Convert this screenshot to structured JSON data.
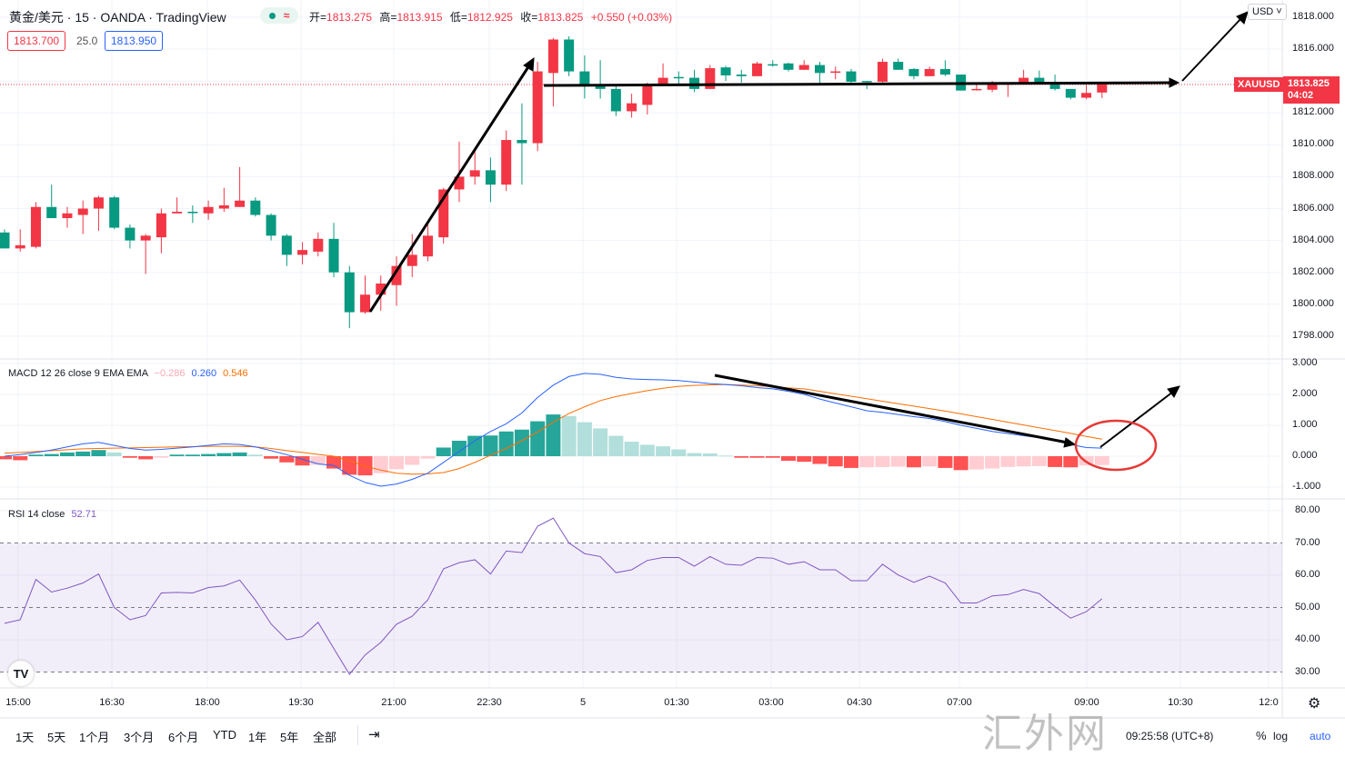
{
  "header": {
    "title": "黄金/美元 · 15 · OANDA · TradingView",
    "status_approx": "≈",
    "ohlc": [
      {
        "k": "开=",
        "v": "1813.275"
      },
      {
        "k": "高=",
        "v": "1813.915"
      },
      {
        "k": "低=",
        "v": "1812.925"
      },
      {
        "k": "收=",
        "v": "1813.825"
      }
    ],
    "change": "+0.550 (+0.03%)",
    "sell_price": "1813.700",
    "spread": "25.0",
    "buy_price": "1813.950"
  },
  "price_axis": {
    "currency": "USD ˅",
    "labels": [
      "1818.000",
      "1816.000",
      "1812.000",
      "1810.000",
      "1808.000",
      "1806.000",
      "1804.000",
      "1802.000",
      "1800.000",
      "1798.000"
    ],
    "symbol": "XAUUSD",
    "last_price": "1813.825",
    "countdown": "04:02"
  },
  "macd": {
    "legend": "MACD 12 26 close 9 EMA EMA",
    "hist_value": "−0.286",
    "macd_value": "0.260",
    "signal_value": "0.546",
    "axis": [
      "3.000",
      "2.000",
      "1.000",
      "0.000",
      "-1.000"
    ]
  },
  "rsi": {
    "legend": "RSI 14 close",
    "value": "52.71",
    "axis": [
      "80.00",
      "70.00",
      "60.00",
      "50.00",
      "40.00",
      "30.00"
    ]
  },
  "time_axis": [
    "15:00",
    "16:30",
    "18:00",
    "19:30",
    "21:00",
    "22:30",
    "5",
    "01:30",
    "03:00",
    "04:30",
    "07:00",
    "09:00",
    "10:30",
    "12:0"
  ],
  "toolbar": {
    "ranges": [
      "1天",
      "5天",
      "1个月",
      "3个月",
      "6个月",
      "YTD",
      "1年",
      "5年",
      "全部"
    ],
    "clock": "09:25:58 (UTC+8)",
    "pct": "%",
    "log": "log",
    "auto": "auto"
  },
  "logo": "TV",
  "watermark": "汇外网",
  "colors": {
    "up": "#f23645",
    "down": "#089981",
    "macd": "#2962ff",
    "signal": "#ff6d00",
    "rsi": "#7e57c2",
    "hist_up_grow": "#26a69a",
    "hist_up_fall": "#b2dfdb",
    "hist_dn_grow": "#ff5252",
    "hist_dn_fall": "#ffcdd2"
  },
  "chart_data": {
    "type": "candlestick",
    "symbol": "XAUUSD",
    "interval": "15",
    "ylim": [
      1797,
      1818
    ],
    "candles_ohlc": [
      [
        1804.5,
        1804.7,
        1803.5,
        1803.5
      ],
      [
        1803.5,
        1804.7,
        1803.3,
        1803.7
      ],
      [
        1803.6,
        1806.4,
        1803.5,
        1806.1
      ],
      [
        1806.1,
        1807.5,
        1805.4,
        1805.4
      ],
      [
        1805.4,
        1806.1,
        1804.8,
        1805.7
      ],
      [
        1805.6,
        1806.5,
        1804.4,
        1806.0
      ],
      [
        1806.0,
        1806.8,
        1804.6,
        1806.7
      ],
      [
        1806.7,
        1806.8,
        1804.7,
        1804.8
      ],
      [
        1804.8,
        1805.0,
        1803.5,
        1804.0
      ],
      [
        1804.0,
        1804.4,
        1801.9,
        1804.3
      ],
      [
        1804.2,
        1806.0,
        1803.2,
        1805.7
      ],
      [
        1805.7,
        1806.7,
        1805.7,
        1805.8
      ],
      [
        1805.8,
        1806.2,
        1805.1,
        1805.75
      ],
      [
        1805.7,
        1806.5,
        1805.3,
        1806.1
      ],
      [
        1806.0,
        1807.3,
        1805.8,
        1806.2
      ],
      [
        1806.1,
        1808.6,
        1806.1,
        1806.5
      ],
      [
        1806.5,
        1806.7,
        1805.5,
        1805.6
      ],
      [
        1805.6,
        1805.7,
        1804.0,
        1804.3
      ],
      [
        1804.3,
        1804.4,
        1802.4,
        1803.1
      ],
      [
        1803.1,
        1803.9,
        1802.5,
        1803.4
      ],
      [
        1803.3,
        1804.5,
        1803.0,
        1804.1
      ],
      [
        1804.1,
        1805.1,
        1801.7,
        1802.0
      ],
      [
        1802.0,
        1802.4,
        1798.5,
        1799.5
      ],
      [
        1799.5,
        1801.8,
        1799.4,
        1800.6
      ],
      [
        1800.6,
        1801.8,
        1799.6,
        1801.3
      ],
      [
        1801.2,
        1803.0,
        1799.9,
        1802.4
      ],
      [
        1802.4,
        1804.4,
        1801.7,
        1803.1
      ],
      [
        1803.0,
        1805.2,
        1802.7,
        1804.3
      ],
      [
        1804.2,
        1807.3,
        1803.8,
        1807.2
      ],
      [
        1807.2,
        1810.2,
        1806.4,
        1808.0
      ],
      [
        1808.0,
        1809.8,
        1807.5,
        1808.4
      ],
      [
        1808.4,
        1809.2,
        1806.4,
        1807.5
      ],
      [
        1807.5,
        1810.9,
        1807.1,
        1810.3
      ],
      [
        1810.3,
        1812.6,
        1807.5,
        1810.1
      ],
      [
        1810.1,
        1815.2,
        1809.6,
        1814.6
      ],
      [
        1814.5,
        1816.7,
        1812.4,
        1816.6
      ],
      [
        1816.6,
        1816.8,
        1814.3,
        1814.6
      ],
      [
        1814.6,
        1815.6,
        1812.9,
        1813.8
      ],
      [
        1813.8,
        1815.3,
        1812.9,
        1813.5
      ],
      [
        1813.5,
        1813.8,
        1811.8,
        1812.1
      ],
      [
        1812.1,
        1813.2,
        1811.7,
        1812.6
      ],
      [
        1812.5,
        1813.9,
        1811.9,
        1813.8
      ],
      [
        1813.8,
        1815.1,
        1813.8,
        1814.2
      ],
      [
        1814.25,
        1814.6,
        1813.8,
        1814.2
      ],
      [
        1814.2,
        1814.7,
        1813.3,
        1813.5
      ],
      [
        1813.5,
        1815.0,
        1813.5,
        1814.8
      ],
      [
        1814.85,
        1814.95,
        1814.0,
        1814.35
      ],
      [
        1814.4,
        1814.7,
        1813.9,
        1814.3
      ],
      [
        1814.3,
        1815.2,
        1814.3,
        1815.1
      ],
      [
        1815.05,
        1815.3,
        1814.9,
        1815.0
      ],
      [
        1815.1,
        1815.15,
        1814.6,
        1814.7
      ],
      [
        1814.7,
        1815.3,
        1814.7,
        1815.0
      ],
      [
        1815.0,
        1815.2,
        1813.8,
        1814.5
      ],
      [
        1814.55,
        1814.9,
        1814.1,
        1814.6
      ],
      [
        1814.6,
        1814.75,
        1813.85,
        1813.95
      ],
      [
        1814.0,
        1814.0,
        1813.5,
        1813.95
      ],
      [
        1813.95,
        1815.4,
        1813.9,
        1815.2
      ],
      [
        1815.2,
        1815.4,
        1814.7,
        1814.7
      ],
      [
        1814.75,
        1814.8,
        1814.1,
        1814.3
      ],
      [
        1814.3,
        1814.9,
        1814.3,
        1814.75
      ],
      [
        1814.75,
        1815.3,
        1814.3,
        1814.4
      ],
      [
        1814.4,
        1814.4,
        1813.4,
        1813.4
      ],
      [
        1813.45,
        1813.85,
        1813.4,
        1813.5
      ],
      [
        1813.45,
        1814.0,
        1813.3,
        1813.9
      ],
      [
        1813.8,
        1813.85,
        1813.0,
        1813.85
      ],
      [
        1813.85,
        1814.7,
        1813.8,
        1814.2
      ],
      [
        1814.2,
        1814.65,
        1813.8,
        1813.85
      ],
      [
        1813.9,
        1814.4,
        1813.4,
        1813.5
      ],
      [
        1813.5,
        1813.5,
        1812.85,
        1812.95
      ],
      [
        1812.95,
        1813.8,
        1812.85,
        1813.25
      ],
      [
        1813.275,
        1813.915,
        1812.925,
        1813.825
      ]
    ],
    "macd": [
      0.0,
      0.05,
      0.12,
      0.2,
      0.3,
      0.4,
      0.45,
      0.35,
      0.25,
      0.2,
      0.22,
      0.26,
      0.3,
      0.35,
      0.4,
      0.38,
      0.3,
      0.18,
      0.05,
      -0.1,
      -0.25,
      -0.3,
      -0.62,
      -0.85,
      -0.97,
      -0.9,
      -0.75,
      -0.55,
      -0.2,
      0.15,
      0.5,
      0.8,
      1.05,
      1.4,
      1.9,
      2.3,
      2.58,
      2.68,
      2.65,
      2.55,
      2.5,
      2.48,
      2.47,
      2.45,
      2.4,
      2.35,
      2.32,
      2.28,
      2.22,
      2.18,
      2.1,
      2.0,
      1.85,
      1.72,
      1.6,
      1.47,
      1.42,
      1.35,
      1.28,
      1.22,
      1.12,
      1.0,
      0.9,
      0.8,
      0.73,
      0.66,
      0.6,
      0.5,
      0.38,
      0.28,
      0.26
    ],
    "signal": [
      0.1,
      0.12,
      0.15,
      0.18,
      0.21,
      0.24,
      0.25,
      0.26,
      0.27,
      0.28,
      0.29,
      0.3,
      0.31,
      0.32,
      0.32,
      0.32,
      0.3,
      0.25,
      0.18,
      0.12,
      0.06,
      0.0,
      -0.15,
      -0.32,
      -0.45,
      -0.55,
      -0.58,
      -0.57,
      -0.53,
      -0.4,
      -0.2,
      0.03,
      0.25,
      0.5,
      0.78,
      1.1,
      1.38,
      1.6,
      1.8,
      1.93,
      2.03,
      2.12,
      2.2,
      2.26,
      2.29,
      2.31,
      2.32,
      2.3,
      2.28,
      2.25,
      2.21,
      2.18,
      2.1,
      2.02,
      1.94,
      1.86,
      1.78,
      1.7,
      1.62,
      1.54,
      1.46,
      1.37,
      1.28,
      1.19,
      1.1,
      1.01,
      0.92,
      0.83,
      0.74,
      0.64,
      0.55
    ],
    "histogram": [
      -0.1,
      -0.13,
      0.05,
      0.07,
      0.12,
      0.15,
      0.2,
      0.12,
      -0.05,
      -0.1,
      -0.05,
      0.05,
      0.05,
      0.07,
      0.1,
      0.12,
      0.05,
      -0.08,
      -0.2,
      -0.3,
      -0.28,
      -0.4,
      -0.6,
      -0.62,
      -0.55,
      -0.42,
      -0.28,
      -0.08,
      0.28,
      0.5,
      0.66,
      0.67,
      0.8,
      0.86,
      1.13,
      1.35,
      1.3,
      1.1,
      0.9,
      0.66,
      0.47,
      0.37,
      0.32,
      0.22,
      0.1,
      0.09,
      0.02,
      -0.05,
      -0.05,
      -0.05,
      -0.15,
      -0.18,
      -0.25,
      -0.33,
      -0.38,
      -0.36,
      -0.35,
      -0.34,
      -0.36,
      -0.33,
      -0.38,
      -0.45,
      -0.43,
      -0.4,
      -0.35,
      -0.33,
      -0.32,
      -0.35,
      -0.36,
      -0.3,
      -0.286
    ],
    "macd_ylim": [
      -1.1,
      3.1
    ],
    "rsi": [
      45.1,
      46.2,
      58.7,
      54.8,
      56,
      57.6,
      60.4,
      50,
      46.2,
      47.5,
      54.5,
      54.7,
      54.5,
      56.2,
      56.7,
      58.5,
      52.3,
      44.9,
      40,
      41,
      45.4,
      37.3,
      29.3,
      35.3,
      39.2,
      44.8,
      47.3,
      52.4,
      62,
      63.9,
      64.8,
      60.4,
      67.5,
      67,
      75.2,
      77.7,
      70,
      66.7,
      65.8,
      60.8,
      61.7,
      64.6,
      65.5,
      65.5,
      62.8,
      65.8,
      63.4,
      63.1,
      65.5,
      65.3,
      63.4,
      64.2,
      61.7,
      61.7,
      58.3,
      58.3,
      63.4,
      60.1,
      57.8,
      59.7,
      57.6,
      51.4,
      51.4,
      53.6,
      54,
      55.6,
      54.3,
      50.3,
      46.7,
      48.7,
      52.71
    ],
    "rsi_bands": [
      70,
      50,
      30
    ]
  }
}
